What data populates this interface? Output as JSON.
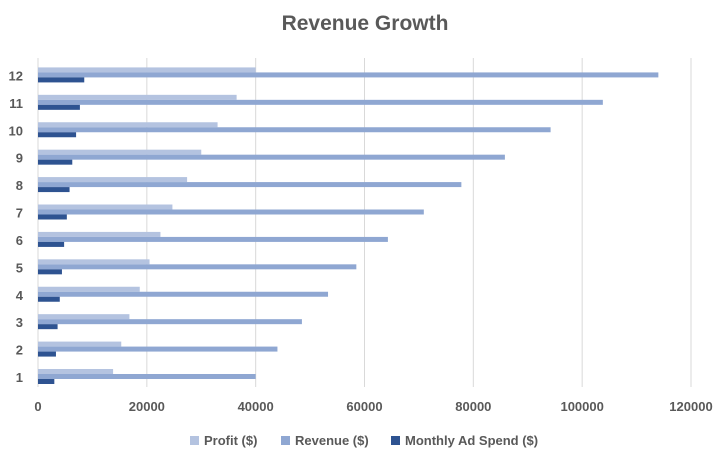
{
  "chart_data": {
    "type": "bar",
    "orientation": "horizontal",
    "title": "Revenue Growth",
    "xlabel": "",
    "ylabel": "",
    "categories": [
      "1",
      "2",
      "3",
      "4",
      "5",
      "6",
      "7",
      "8",
      "9",
      "10",
      "11",
      "12"
    ],
    "xlim": [
      0,
      120000
    ],
    "xticks": [
      "0",
      "20000",
      "40000",
      "60000",
      "80000",
      "100000",
      "120000"
    ],
    "grid": true,
    "legend_position": "bottom",
    "series": [
      {
        "name": "Profit ($)",
        "color": "#b4c3e0",
        "values": [
          13800,
          15300,
          16800,
          18700,
          20500,
          22500,
          24700,
          27400,
          30000,
          33000,
          36500,
          40000
        ]
      },
      {
        "name": "Revenue ($)",
        "color": "#8fa7d2",
        "values": [
          40000,
          44000,
          48500,
          53300,
          58500,
          64300,
          70900,
          77800,
          85800,
          94200,
          103800,
          114000
        ]
      },
      {
        "name": "Monthly Ad Spend ($)",
        "color": "#2e5391",
        "values": [
          3000,
          3300,
          3600,
          4000,
          4400,
          4800,
          5300,
          5800,
          6300,
          7000,
          7700,
          8500
        ]
      }
    ]
  }
}
